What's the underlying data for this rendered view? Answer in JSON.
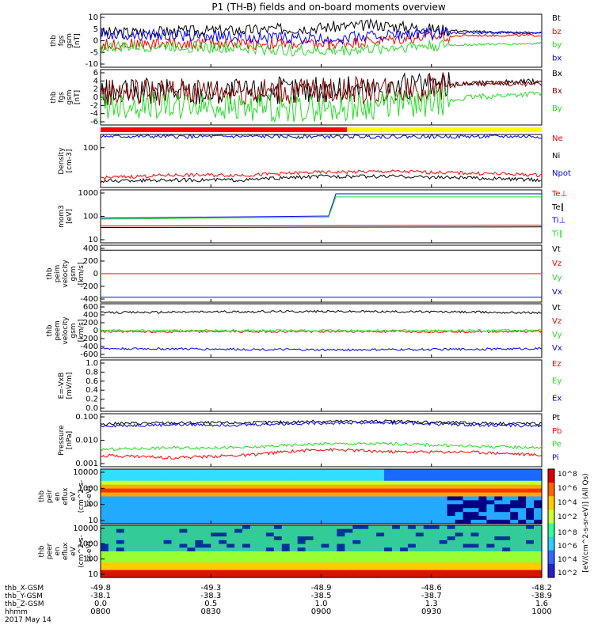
{
  "title": "P1 (TH-B) fields and on-board moments overview",
  "colors": {
    "black": "#000000",
    "red": "#ff0000",
    "green": "#22dd22",
    "blue": "#0000ff",
    "darkred": "#8b0000",
    "yellow": "#ffff00"
  },
  "footer": {
    "row_labels": [
      "thb_X-GSM",
      "thb_Y-GSM",
      "thb_Z-GSM",
      "hhmm"
    ],
    "date": "2017 May 14",
    "columns": [
      {
        "x": "-49.8",
        "y": "-38.1",
        "z": "0.0",
        "t": "0800"
      },
      {
        "x": "-49.3",
        "y": "-38.3",
        "z": "0.5",
        "t": "0830"
      },
      {
        "x": "-48.9",
        "y": "-38.5",
        "z": "1.0",
        "t": "0900"
      },
      {
        "x": "-48.6",
        "y": "-38.7",
        "z": "1.3",
        "t": "0930"
      },
      {
        "x": "-48.2",
        "y": "-38.9",
        "z": "1.6",
        "t": "1000"
      }
    ]
  },
  "colorbar": {
    "label": "[eV/(cm^2-s-sr-eV)] (All Qs)",
    "ticks_top": [
      "10^8",
      "10^6",
      "10^4",
      "10^2"
    ],
    "ticks_bottom": [
      "10^8",
      "10^6",
      "10^4",
      "10^2"
    ]
  },
  "chart_data": {
    "type": "line",
    "x_range_minutes": [
      0,
      120
    ],
    "panels": [
      {
        "id": "fgs",
        "ylabel": [
          "thb",
          "fgs",
          "gsm",
          "[nT]"
        ],
        "ticks": [
          "10",
          "5",
          "0",
          "-5",
          "-10"
        ],
        "ylim": [
          -10,
          10
        ],
        "legend": [
          {
            "text": "Bt",
            "color": "black"
          },
          {
            "text": "bz",
            "color": "red"
          },
          {
            "text": "by",
            "color": "green"
          },
          {
            "text": "bx",
            "color": "blue"
          }
        ]
      },
      {
        "id": "fgs2",
        "ylabel": [
          "thb",
          "fgs",
          "gsm",
          "[nT]"
        ],
        "ticks": [
          "6",
          "4",
          "2",
          "0",
          "-2",
          "-4",
          "-6"
        ],
        "ylim": [
          -8,
          6
        ],
        "legend": [
          {
            "text": "Bx",
            "color": "black"
          },
          {
            "text": "Bx",
            "color": "darkred"
          },
          {
            "text": "By",
            "color": "green"
          }
        ]
      },
      {
        "id": "density",
        "ylabel": [
          "Density",
          "[cm-3]"
        ],
        "ticks": [
          "100"
        ],
        "ylim": [
          0.1,
          200
        ],
        "legend": [
          {
            "text": "Ne",
            "color": "red"
          },
          {
            "text": "Ni",
            "color": "black"
          },
          {
            "text": "Npot",
            "color": "blue"
          }
        ]
      },
      {
        "id": "temp",
        "ylabel": [
          "mom3",
          "[eV]"
        ],
        "ticks": [
          "1000",
          "100",
          "10"
        ],
        "ylim": [
          1,
          1000
        ],
        "legend": [
          {
            "text": "Te⊥",
            "color": "red"
          },
          {
            "text": "Te∥",
            "color": "black"
          },
          {
            "text": "Ti⊥",
            "color": "blue"
          },
          {
            "text": "Ti∥",
            "color": "green"
          }
        ]
      },
      {
        "id": "peim",
        "ylabel": [
          "thb",
          "peim",
          "velocity",
          "gsm",
          "[km/s]"
        ],
        "ticks": [
          "400",
          "200",
          "0",
          "-200",
          "-400"
        ],
        "ylim": [
          -400,
          400
        ],
        "legend": [
          {
            "text": "Vt",
            "color": "black"
          },
          {
            "text": "Vz",
            "color": "red"
          },
          {
            "text": "Vy",
            "color": "green"
          },
          {
            "text": "Vx",
            "color": "blue"
          }
        ]
      },
      {
        "id": "peem",
        "ylabel": [
          "thb",
          "peem",
          "velocity",
          "gsm",
          "[km/s]"
        ],
        "ticks": [
          "600",
          "400",
          "200",
          "0",
          "-200",
          "-400",
          "-600"
        ],
        "ylim": [
          -600,
          600
        ],
        "legend": [
          {
            "text": "Vt",
            "color": "black"
          },
          {
            "text": "Vz",
            "color": "red"
          },
          {
            "text": "Vy",
            "color": "green"
          },
          {
            "text": "Vx",
            "color": "blue"
          }
        ]
      },
      {
        "id": "efield",
        "ylabel": [
          "E=-VxB",
          "[mV/m]"
        ],
        "ticks": [
          "1.0",
          "0.8",
          "0.6",
          "0.4",
          "0.2",
          "0.0"
        ],
        "ylim": [
          0,
          1
        ],
        "legend": [
          {
            "text": "Ez",
            "color": "red"
          },
          {
            "text": "Ey",
            "color": "green"
          },
          {
            "text": "Ex",
            "color": "blue"
          }
        ]
      },
      {
        "id": "pressure",
        "ylabel": [
          "Pressure",
          "[nPa]"
        ],
        "ticks": [
          "0.100",
          "0.010",
          "0.001"
        ],
        "ylim": [
          0.0005,
          0.3
        ],
        "legend": [
          {
            "text": "Pt",
            "color": "black"
          },
          {
            "text": "Pb",
            "color": "red"
          },
          {
            "text": "Pe",
            "color": "green"
          },
          {
            "text": "Pi",
            "color": "blue"
          }
        ]
      },
      {
        "id": "peir",
        "ylabel": [
          "thb",
          "peir",
          "en",
          "eflux",
          "eV",
          "(cm^2-s-",
          "sr-eV)"
        ],
        "ticks": [
          "10000",
          "1000",
          "100",
          "10"
        ],
        "ylim": [
          5,
          30000
        ],
        "legend": []
      },
      {
        "id": "peer",
        "ylabel": [
          "thb",
          "peer",
          "en",
          "eflux",
          "eV",
          "(cm^2-s-",
          "sr-eV)"
        ],
        "ticks": [
          "10000",
          "1000",
          "100",
          "10"
        ],
        "ylim": [
          5,
          30000
        ],
        "legend": []
      }
    ],
    "series": [
      {
        "panel": "fgs",
        "name": "Bt",
        "color": "black",
        "x": [
          0,
          20,
          40,
          60,
          75,
          85,
          100,
          120
        ],
        "values": [
          3,
          3.5,
          4,
          5,
          6,
          5,
          3.5,
          3
        ]
      },
      {
        "panel": "fgs",
        "name": "bz",
        "color": "red",
        "x": [
          0,
          20,
          40,
          60,
          75,
          85,
          100,
          120
        ],
        "values": [
          -1.5,
          -1,
          -1,
          -1.5,
          0,
          1,
          2,
          2
        ]
      },
      {
        "panel": "fgs",
        "name": "by",
        "color": "green",
        "x": [
          0,
          20,
          40,
          60,
          75,
          85,
          100,
          120
        ],
        "values": [
          -2.5,
          -2,
          -3,
          -4,
          -3,
          -2,
          -1.5,
          -1
        ]
      },
      {
        "panel": "fgs",
        "name": "bx",
        "color": "blue",
        "x": [
          0,
          20,
          40,
          60,
          75,
          85,
          100,
          120
        ],
        "values": [
          2.5,
          2,
          1.5,
          0.5,
          2,
          2.5,
          3,
          3
        ]
      },
      {
        "panel": "fgs2",
        "name": "Bx",
        "color": "black",
        "x": [
          0,
          20,
          40,
          60,
          80,
          95,
          100,
          120
        ],
        "values": [
          0,
          0.5,
          0.5,
          1,
          1.5,
          2,
          2.5,
          3
        ]
      },
      {
        "panel": "fgs2",
        "name": "Bx",
        "color": "darkred",
        "x": [
          0,
          20,
          40,
          60,
          80,
          95,
          100,
          120
        ],
        "values": [
          0,
          0.5,
          0.5,
          0.5,
          1,
          2,
          2.5,
          2.5
        ]
      },
      {
        "panel": "fgs2",
        "name": "By",
        "color": "green",
        "x": [
          0,
          20,
          40,
          60,
          80,
          95,
          100,
          120
        ],
        "values": [
          -3,
          -3,
          -3.5,
          -4,
          -3,
          -2,
          -1,
          0
        ]
      },
      {
        "panel": "temp",
        "name": "Ti⊥",
        "color": "blue",
        "x": [
          0,
          20,
          40,
          60,
          62,
          64,
          120
        ],
        "values": [
          25,
          28,
          30,
          33,
          33,
          600,
          600
        ]
      },
      {
        "panel": "temp",
        "name": "Ti∥",
        "color": "green",
        "x": [
          0,
          20,
          40,
          60,
          62,
          64,
          120
        ],
        "values": [
          22,
          24,
          26,
          28,
          28,
          400,
          400
        ]
      },
      {
        "panel": "temp",
        "name": "Te⊥",
        "color": "red",
        "x": [
          0,
          120
        ],
        "values": [
          9,
          10
        ]
      },
      {
        "panel": "temp",
        "name": "Te∥",
        "color": "black",
        "x": [
          0,
          120
        ],
        "values": [
          7.5,
          8
        ]
      },
      {
        "panel": "peim",
        "name": "Vt",
        "color": "black",
        "x": [
          0,
          120
        ],
        "values": [
          330,
          330
        ]
      },
      {
        "panel": "peim",
        "name": "Vz",
        "color": "red",
        "x": [
          0,
          120
        ],
        "values": [
          0,
          0
        ]
      },
      {
        "panel": "peim",
        "name": "Vy",
        "color": "green",
        "x": [
          0,
          120
        ],
        "values": [
          5,
          5
        ]
      },
      {
        "panel": "peim",
        "name": "Vx",
        "color": "blue",
        "x": [
          0,
          120
        ],
        "values": [
          -330,
          -330
        ]
      },
      {
        "panel": "peem",
        "name": "Vt",
        "color": "black",
        "x": [
          0,
          30,
          60,
          90,
          120
        ],
        "values": [
          400,
          420,
          430,
          420,
          400
        ]
      },
      {
        "panel": "peem",
        "name": "Vz",
        "color": "red",
        "x": [
          0,
          120
        ],
        "values": [
          -20,
          -20
        ]
      },
      {
        "panel": "peem",
        "name": "Vy",
        "color": "green",
        "x": [
          0,
          120
        ],
        "values": [
          0,
          0
        ]
      },
      {
        "panel": "peem",
        "name": "Vx",
        "color": "blue",
        "x": [
          0,
          30,
          60,
          90,
          120
        ],
        "values": [
          -400,
          -410,
          -430,
          -420,
          -400
        ]
      },
      {
        "panel": "density",
        "name": "Ne",
        "color": "red",
        "x": [
          0,
          20,
          40,
          60,
          80,
          100,
          120
        ],
        "values": [
          0.4,
          0.6,
          0.6,
          0.9,
          1,
          0.8,
          0.6
        ]
      },
      {
        "panel": "density",
        "name": "Ni",
        "color": "black",
        "x": [
          0,
          20,
          40,
          60,
          80,
          100,
          120
        ],
        "values": [
          0.25,
          0.3,
          0.3,
          0.5,
          0.5,
          0.4,
          0.3
        ]
      },
      {
        "panel": "density",
        "name": "Npot",
        "color": "blue",
        "x": [
          0,
          10,
          20
        ],
        "values": [
          150,
          150,
          150
        ]
      },
      {
        "panel": "pressure",
        "name": "Pt",
        "color": "black",
        "x": [
          0,
          20,
          40,
          60,
          80,
          100,
          120
        ],
        "values": [
          0.09,
          0.1,
          0.1,
          0.12,
          0.12,
          0.1,
          0.09
        ]
      },
      {
        "panel": "pressure",
        "name": "Pi",
        "color": "blue",
        "x": [
          0,
          20,
          40,
          60,
          80,
          100,
          120
        ],
        "values": [
          0.07,
          0.08,
          0.08,
          0.1,
          0.1,
          0.08,
          0.07
        ]
      },
      {
        "panel": "pressure",
        "name": "Pe",
        "color": "green",
        "x": [
          0,
          20,
          40,
          60,
          80,
          100,
          120
        ],
        "values": [
          0.004,
          0.005,
          0.005,
          0.008,
          0.008,
          0.006,
          0.005
        ]
      },
      {
        "panel": "pressure",
        "name": "Pb",
        "color": "red",
        "x": [
          0,
          20,
          40,
          60,
          80,
          100,
          120
        ],
        "values": [
          0.002,
          0.0015,
          0.002,
          0.004,
          0.003,
          0.003,
          0.002
        ]
      }
    ],
    "mode_bar": [
      {
        "from": 0,
        "to": 67,
        "color": "red"
      },
      {
        "from": 67,
        "to": 120,
        "color": "yellow"
      }
    ]
  }
}
